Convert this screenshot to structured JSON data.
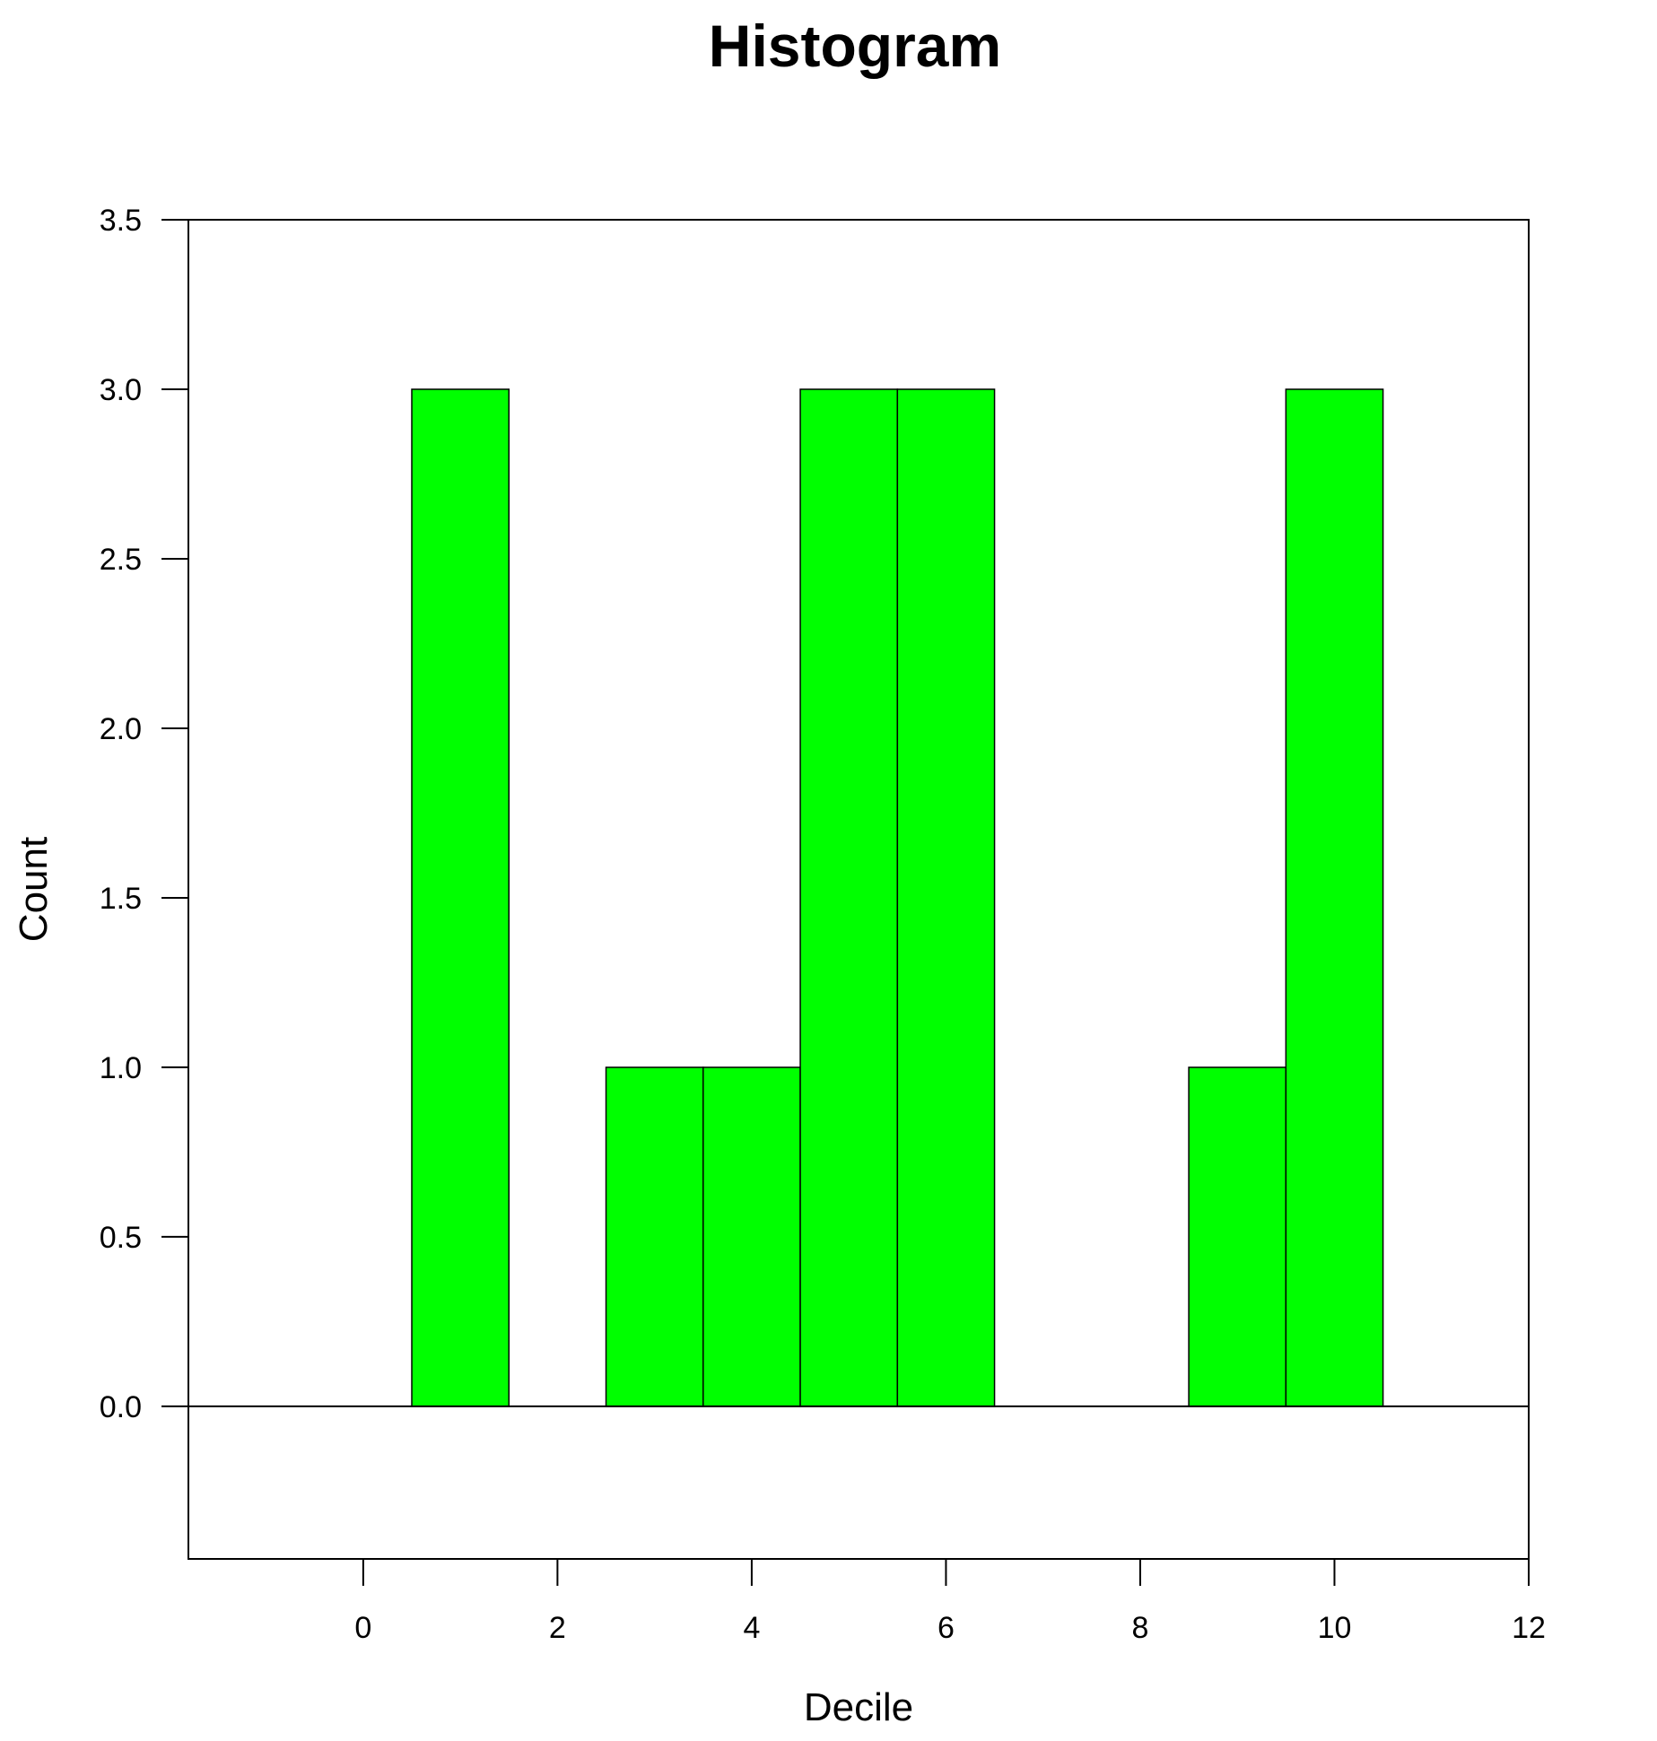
{
  "chart_data": {
    "type": "bar",
    "title": "Histogram",
    "xlabel": "Decile",
    "ylabel": "Count",
    "xlim": [
      -1.8,
      12
    ],
    "ylim": [
      -0.45,
      3.5
    ],
    "x_ticks": [
      0,
      2,
      4,
      6,
      8,
      10,
      12
    ],
    "y_ticks": [
      0.0,
      0.5,
      1.0,
      1.5,
      2.0,
      2.5,
      3.0,
      3.5
    ],
    "y_tick_labels": [
      "0.0",
      "0.5",
      "1.0",
      "1.5",
      "2.0",
      "2.5",
      "3.0",
      "3.5"
    ],
    "x_tick_labels": [
      "0",
      "2",
      "4",
      "6",
      "8",
      "10",
      "12"
    ],
    "bin_width": 1,
    "bars": [
      {
        "x": 1,
        "count": 3
      },
      {
        "x": 3,
        "count": 1
      },
      {
        "x": 4,
        "count": 1
      },
      {
        "x": 5,
        "count": 3
      },
      {
        "x": 6,
        "count": 3
      },
      {
        "x": 9,
        "count": 1
      },
      {
        "x": 10,
        "count": 3
      }
    ],
    "grid": false,
    "colors": {
      "bar_fill": "#00ff00",
      "bar_edge": "#000000",
      "axis": "#000000",
      "background": "#ffffff"
    }
  }
}
